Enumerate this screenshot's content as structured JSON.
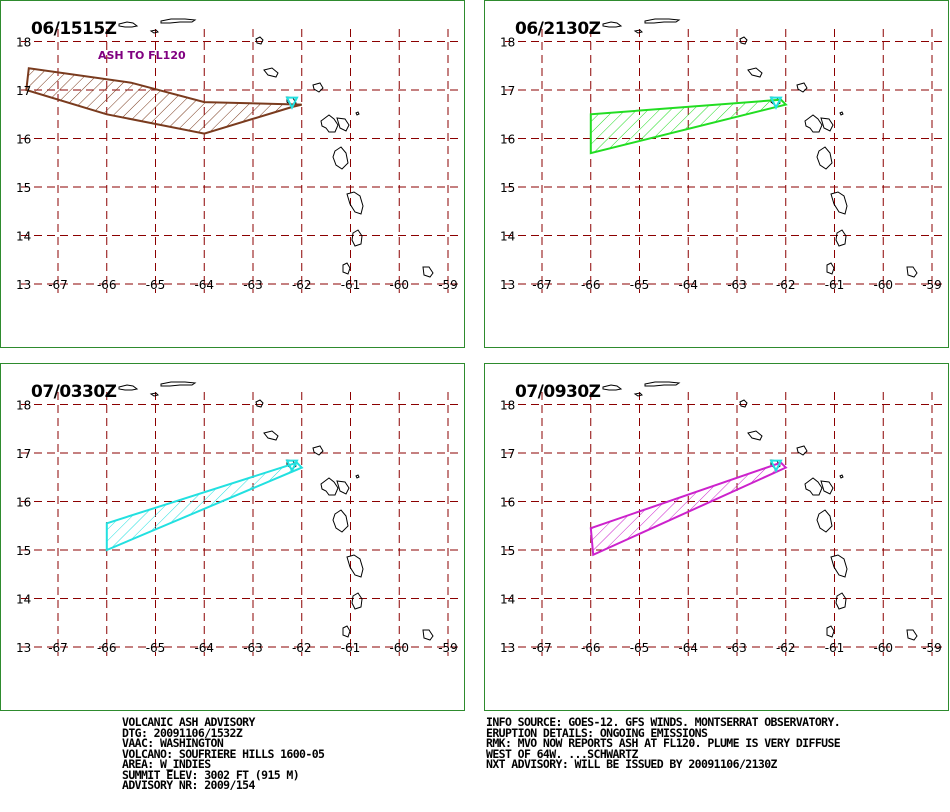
{
  "panels": [
    {
      "title": "06/1515Z",
      "label": "ASH TO FL120",
      "ash_color": "#7a3b1e",
      "ash_polygon": [
        [
          -67.6,
          17.45
        ],
        [
          -67.65,
          17.0
        ],
        [
          -66.0,
          16.5
        ],
        [
          -64.0,
          16.1
        ],
        [
          -62.2,
          16.65
        ],
        [
          -62.0,
          16.7
        ],
        [
          -64.0,
          16.75
        ],
        [
          -65.5,
          17.15
        ]
      ]
    },
    {
      "title": "06/2130Z",
      "label": "",
      "ash_color": "#22dd22",
      "ash_polygon": [
        [
          -66.0,
          16.5
        ],
        [
          -66.0,
          15.7
        ],
        [
          -62.0,
          16.7
        ],
        [
          -62.1,
          16.8
        ]
      ]
    },
    {
      "title": "07/0330Z",
      "label": "",
      "ash_color": "#22e0e0",
      "ash_polygon": [
        [
          -66.0,
          15.55
        ],
        [
          -66.0,
          15.0
        ],
        [
          -62.0,
          16.7
        ],
        [
          -62.1,
          16.8
        ]
      ]
    },
    {
      "title": "07/0930Z",
      "label": "",
      "ash_color": "#cc22cc",
      "ash_polygon": [
        [
          -66.0,
          15.45
        ],
        [
          -65.95,
          14.9
        ],
        [
          -62.0,
          16.7
        ],
        [
          -62.1,
          16.8
        ]
      ]
    }
  ],
  "axes": {
    "lat_labels": [
      "18",
      "17",
      "16",
      "15",
      "14",
      "13"
    ],
    "lon_labels": [
      "-67",
      "-66",
      "-65",
      "-64",
      "-63",
      "-62",
      "-61",
      "-60",
      "-59"
    ]
  },
  "colors": {
    "grid": "#8b0000",
    "panel_border": "#2e8b2e",
    "volcano": "#22e0e0",
    "text": "#000000"
  },
  "volcano_marker": {
    "lon": -62.2,
    "lat": 16.72,
    "icon": "volcano-triangle-icon"
  },
  "advisory_left": [
    "VOLCANIC ASH ADVISORY",
    "DTG: 20091106/1532Z",
    "VAAC: WASHINGTON",
    "VOLCANO: SOUFRIERE HILLS 1600-05",
    "AREA: W_INDIES",
    "SUMMIT ELEV: 3002 FT (915 M)",
    "ADVISORY NR: 2009/154"
  ],
  "advisory_right": [
    "INFO SOURCE: GOES-12. GFS WINDS. MONTSERRAT OBSERVATORY.",
    "ERUPTION DETAILS: ONGOING EMISSIONS",
    "RMK: MVO NOW REPORTS ASH AT FL120. PLUME IS VERY DIFFUSE",
    "WEST OF 64W. ...SCHWARTZ",
    "NXT ADVISORY: WILL BE ISSUED BY 20091106/2130Z"
  ]
}
